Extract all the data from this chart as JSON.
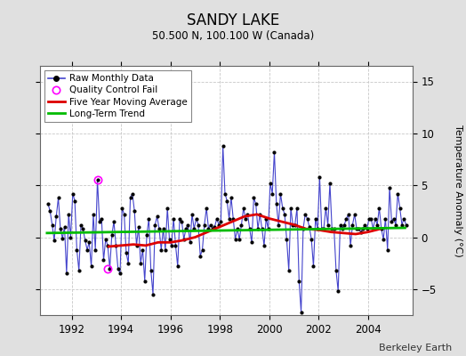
{
  "title": "SANDY LAKE",
  "subtitle": "50.500 N, 100.100 W (Canada)",
  "ylabel": "Temperature Anomaly (°C)",
  "attribution": "Berkeley Earth",
  "xlim": [
    1990.7,
    2005.8
  ],
  "ylim": [
    -7.5,
    16.5
  ],
  "yticks": [
    -5,
    0,
    5,
    10,
    15
  ],
  "bg_color": "#e0e0e0",
  "plot_bg": "#ffffff",
  "grid_color": "#c8c8c8",
  "raw_color": "#4444cc",
  "raw_marker_color": "#000000",
  "qc_color": "#ff00ff",
  "moving_avg_color": "#dd0000",
  "trend_color": "#00bb00",
  "raw_data": {
    "times": [
      1991.042,
      1991.125,
      1991.208,
      1991.292,
      1991.375,
      1991.458,
      1991.542,
      1991.625,
      1991.708,
      1991.792,
      1991.875,
      1991.958,
      1992.042,
      1992.125,
      1992.208,
      1992.292,
      1992.375,
      1992.458,
      1992.542,
      1992.625,
      1992.708,
      1992.792,
      1992.875,
      1992.958,
      1993.042,
      1993.125,
      1993.208,
      1993.292,
      1993.375,
      1993.458,
      1993.542,
      1993.625,
      1993.708,
      1993.792,
      1993.875,
      1993.958,
      1994.042,
      1994.125,
      1994.208,
      1994.292,
      1994.375,
      1994.458,
      1994.542,
      1994.625,
      1994.708,
      1994.792,
      1994.875,
      1994.958,
      1995.042,
      1995.125,
      1995.208,
      1995.292,
      1995.375,
      1995.458,
      1995.542,
      1995.625,
      1995.708,
      1995.792,
      1995.875,
      1995.958,
      1996.042,
      1996.125,
      1996.208,
      1996.292,
      1996.375,
      1996.458,
      1996.542,
      1996.625,
      1996.708,
      1996.792,
      1996.875,
      1996.958,
      1997.042,
      1997.125,
      1997.208,
      1997.292,
      1997.375,
      1997.458,
      1997.542,
      1997.625,
      1997.708,
      1997.792,
      1997.875,
      1997.958,
      1998.042,
      1998.125,
      1998.208,
      1998.292,
      1998.375,
      1998.458,
      1998.542,
      1998.625,
      1998.708,
      1998.792,
      1998.875,
      1998.958,
      1999.042,
      1999.125,
      1999.208,
      1999.292,
      1999.375,
      1999.458,
      1999.542,
      1999.625,
      1999.708,
      1999.792,
      1999.875,
      1999.958,
      2000.042,
      2000.125,
      2000.208,
      2000.292,
      2000.375,
      2000.458,
      2000.542,
      2000.625,
      2000.708,
      2000.792,
      2000.875,
      2000.958,
      2001.042,
      2001.125,
      2001.208,
      2001.292,
      2001.375,
      2001.458,
      2001.542,
      2001.625,
      2001.708,
      2001.792,
      2001.875,
      2001.958,
      2002.042,
      2002.125,
      2002.208,
      2002.292,
      2002.375,
      2002.458,
      2002.542,
      2002.625,
      2002.708,
      2002.792,
      2002.875,
      2002.958,
      2003.042,
      2003.125,
      2003.208,
      2003.292,
      2003.375,
      2003.458,
      2003.542,
      2003.625,
      2003.708,
      2003.792,
      2003.875,
      2003.958,
      2004.042,
      2004.125,
      2004.208,
      2004.292,
      2004.375,
      2004.458,
      2004.542,
      2004.625,
      2004.708,
      2004.792,
      2004.875,
      2004.958,
      2005.042,
      2005.125,
      2005.208,
      2005.292,
      2005.375,
      2005.458,
      2005.542
    ],
    "values": [
      3.2,
      2.5,
      1.2,
      -0.3,
      2.0,
      3.8,
      0.8,
      -0.1,
      1.0,
      -3.5,
      2.2,
      0.0,
      4.2,
      3.5,
      -1.2,
      -3.2,
      1.2,
      0.8,
      -0.3,
      -1.2,
      -0.5,
      -2.8,
      2.2,
      -1.2,
      5.5,
      1.5,
      1.8,
      -2.2,
      -0.2,
      -0.8,
      -3.0,
      0.2,
      1.5,
      -0.8,
      -3.0,
      -3.5,
      2.8,
      2.2,
      -1.5,
      -2.5,
      3.8,
      4.2,
      2.5,
      -0.8,
      1.0,
      -2.5,
      -1.2,
      -4.2,
      0.2,
      1.8,
      -3.2,
      -5.5,
      1.2,
      2.0,
      0.8,
      -1.2,
      0.8,
      -1.2,
      2.8,
      -0.2,
      -0.8,
      1.8,
      -0.8,
      -2.8,
      1.8,
      1.5,
      -0.2,
      0.8,
      1.2,
      -0.5,
      2.2,
      0.8,
      1.8,
      1.2,
      -1.8,
      -1.2,
      1.2,
      2.8,
      0.8,
      1.2,
      0.8,
      1.0,
      1.8,
      1.2,
      1.5,
      8.8,
      4.2,
      3.5,
      1.8,
      3.8,
      1.8,
      -0.2,
      0.8,
      -0.2,
      1.2,
      2.8,
      1.8,
      2.2,
      0.8,
      -0.5,
      3.8,
      3.2,
      0.8,
      2.2,
      0.8,
      -0.8,
      1.8,
      0.8,
      5.2,
      4.2,
      8.2,
      3.2,
      1.2,
      4.2,
      2.8,
      2.2,
      -0.2,
      -3.2,
      2.8,
      1.2,
      1.2,
      2.8,
      -4.2,
      -7.2,
      0.8,
      2.2,
      1.8,
      1.0,
      -0.2,
      -2.8,
      1.8,
      0.8,
      5.8,
      0.8,
      0.8,
      2.8,
      1.2,
      5.2,
      0.8,
      0.8,
      -3.2,
      -5.2,
      1.2,
      0.8,
      1.2,
      1.8,
      2.2,
      -0.8,
      1.2,
      2.2,
      0.8,
      0.8,
      0.5,
      0.8,
      1.2,
      0.8,
      1.8,
      1.8,
      0.8,
      1.8,
      1.2,
      2.8,
      0.8,
      -0.2,
      1.8,
      -1.2,
      4.8,
      1.5,
      1.8,
      1.2,
      4.2,
      2.8,
      1.2,
      1.8,
      1.2
    ]
  },
  "qc_fail_times": [
    1993.042,
    1993.458
  ],
  "qc_fail_values": [
    5.5,
    -3.0
  ],
  "moving_avg": {
    "times": [
      1993.5,
      1994.0,
      1994.5,
      1995.0,
      1995.5,
      1996.0,
      1996.5,
      1997.0,
      1997.5,
      1998.0,
      1998.5,
      1999.0,
      1999.5,
      2000.0,
      2000.5,
      2001.0,
      2001.5,
      2002.0,
      2002.5,
      2003.0,
      2003.5,
      2004.0,
      2004.5
    ],
    "values": [
      -0.9,
      -0.8,
      -0.7,
      -0.8,
      -0.5,
      -0.5,
      -0.3,
      0.0,
      0.5,
      1.0,
      1.5,
      2.0,
      2.2,
      1.8,
      1.5,
      1.2,
      0.8,
      0.7,
      0.5,
      0.4,
      0.3,
      0.5,
      0.8
    ]
  },
  "trend": {
    "times": [
      1991.0,
      2005.5
    ],
    "values": [
      0.4,
      0.9
    ]
  }
}
